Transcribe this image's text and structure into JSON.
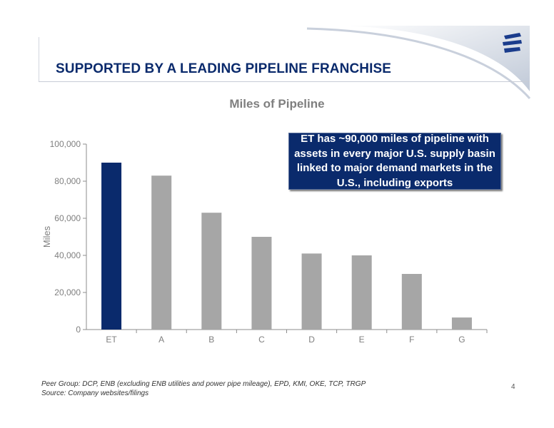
{
  "slide": {
    "title": "SUPPORTED BY A LEADING PIPELINE FRANCHISE",
    "page_number": "4"
  },
  "callout": {
    "text": "ET has ~90,000 miles of pipeline with assets in every major U.S. supply basin linked to major demand markets in the U.S., including exports"
  },
  "footnotes": {
    "peer_group": "Peer Group: DCP, ENB (excluding ENB utilities and power pipe mileage), EPD, KMI, OKE, TCP, TRGP",
    "source": "Source: Company websites/filings"
  },
  "colors": {
    "highlight": "#0a2a6c",
    "bar": "#a6a6a6",
    "title": "#0a2a6c"
  },
  "chart_data": {
    "type": "bar",
    "title": "Miles of Pipeline",
    "xlabel": "",
    "ylabel": "Miles",
    "categories": [
      "ET",
      "A",
      "B",
      "C",
      "D",
      "E",
      "F",
      "G"
    ],
    "values": [
      90000,
      83000,
      63000,
      50000,
      41000,
      40000,
      30000,
      6500
    ],
    "highlight_category": "ET",
    "ylim": [
      0,
      100000
    ],
    "yticks": [
      0,
      20000,
      40000,
      60000,
      80000,
      100000
    ],
    "ytick_labels": [
      "0",
      "20,000",
      "40,000",
      "60,000",
      "80,000",
      "100,000"
    ],
    "grid": false,
    "legend": "none"
  }
}
